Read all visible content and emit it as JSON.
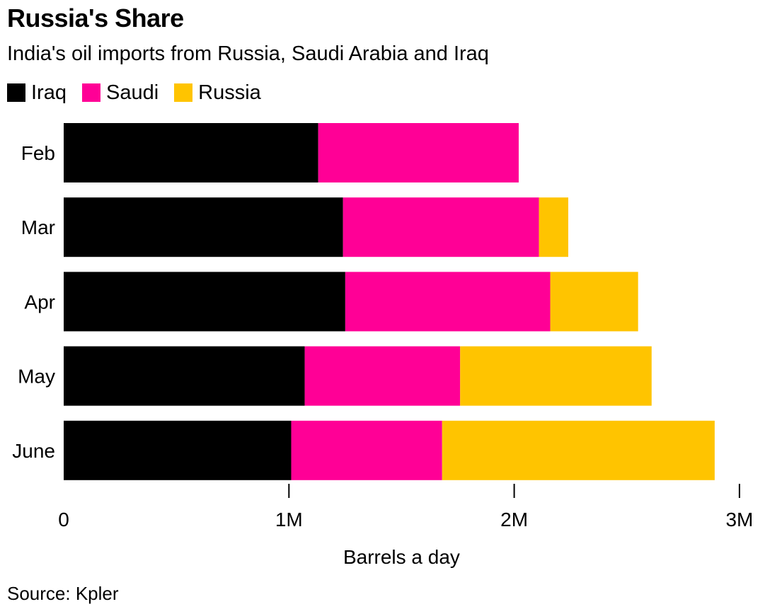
{
  "title": "Russia's Share",
  "subtitle": "India's oil imports from Russia, Saudi Arabia and Iraq",
  "source": "Source: Kpler",
  "colors": {
    "iraq": "#000000",
    "saudi": "#ff0096",
    "russia": "#ffc400",
    "axis": "#000000",
    "text": "#000000"
  },
  "legend": [
    {
      "label": "Iraq",
      "color": "#000000"
    },
    {
      "label": "Saudi",
      "color": "#ff0096"
    },
    {
      "label": "Russia",
      "color": "#ffc400"
    }
  ],
  "chart_data": {
    "type": "bar",
    "orientation": "horizontal",
    "stacked": true,
    "title": "Russia's Share",
    "subtitle": "India's oil imports from Russia, Saudi Arabia and Iraq",
    "xlabel": "Barrels a day",
    "ylabel": "",
    "categories": [
      "Feb",
      "Mar",
      "Apr",
      "May",
      "June"
    ],
    "series": [
      {
        "name": "Iraq",
        "color": "#000000",
        "values": [
          1130000,
          1240000,
          1250000,
          1070000,
          1010000
        ]
      },
      {
        "name": "Saudi",
        "color": "#ff0096",
        "values": [
          890000,
          870000,
          910000,
          690000,
          670000
        ]
      },
      {
        "name": "Russia",
        "color": "#ffc400",
        "values": [
          0,
          130000,
          390000,
          850000,
          1210000
        ]
      }
    ],
    "xlim": [
      0,
      3000000
    ],
    "xticks": [
      {
        "value": 0,
        "label": "0"
      },
      {
        "value": 1000000,
        "label": "1M"
      },
      {
        "value": 2000000,
        "label": "2M"
      },
      {
        "value": 3000000,
        "label": "3M"
      }
    ],
    "grid": false,
    "legend_position": "top-left"
  }
}
